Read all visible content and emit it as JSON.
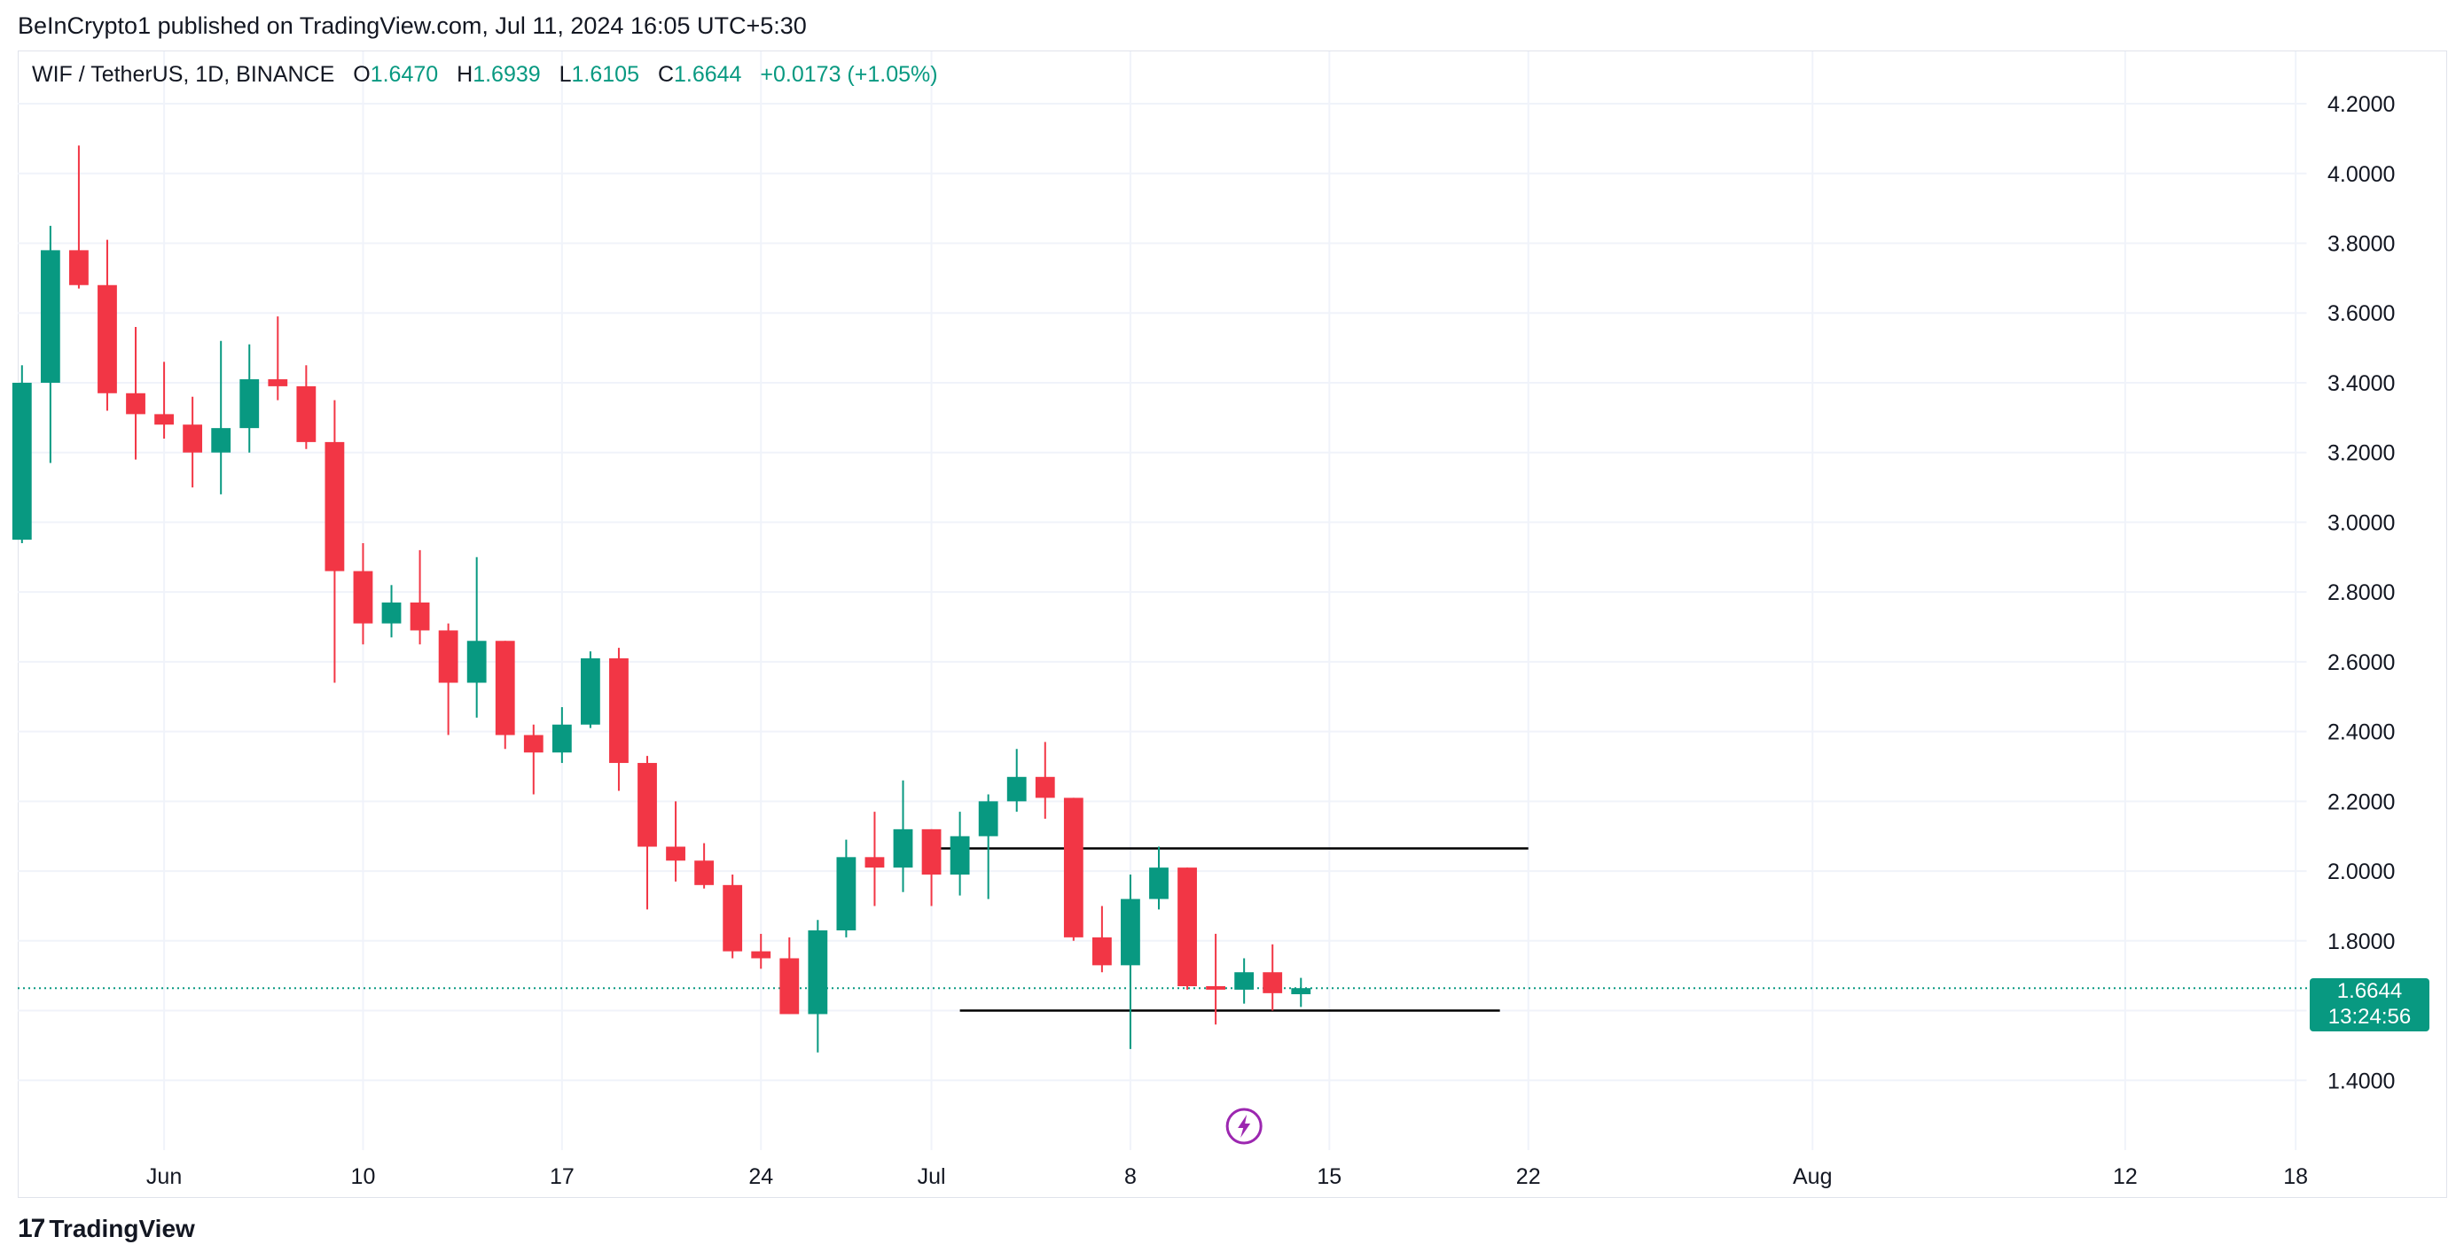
{
  "publisher": "BeInCrypto1 published on TradingView.com, Jul 11, 2024 16:05 UTC+5:30",
  "legend": {
    "symbol": "WIF / TetherUS, 1D, BINANCE",
    "o_label": "O",
    "o_value": "1.6470",
    "h_label": "H",
    "h_value": "1.6939",
    "l_label": "L",
    "l_value": "1.6105",
    "c_label": "C",
    "c_value": "1.6644",
    "change": "+0.0173 (+1.05%)"
  },
  "badge": {
    "price": "1.6644",
    "countdown": "13:24:56"
  },
  "footer": {
    "brand": "TradingView",
    "logo_icon": "tradingview-logo-icon"
  },
  "colors": {
    "up": "#089981",
    "down": "#F23645",
    "grid": "#F0F3FA",
    "event": "#9C27B0"
  },
  "chart_data": {
    "type": "candlestick",
    "y_ticks": [
      "4.2000",
      "4.0000",
      "3.8000",
      "3.6000",
      "3.4000",
      "3.2000",
      "3.0000",
      "2.8000",
      "2.6000",
      "2.4000",
      "2.2000",
      "2.0000",
      "1.8000",
      "1.6000",
      "1.4000"
    ],
    "y_tick_values": [
      4.2,
      4.0,
      3.8,
      3.6,
      3.4,
      3.2,
      3.0,
      2.8,
      2.6,
      2.4,
      2.2,
      2.0,
      1.8,
      1.6,
      1.4
    ],
    "ylim": [
      1.2,
      4.35
    ],
    "x_ticks": [
      {
        "label": "Jun",
        "day": 3
      },
      {
        "label": "10",
        "day": 10
      },
      {
        "label": "17",
        "day": 17
      },
      {
        "label": "24",
        "day": 24
      },
      {
        "label": "Jul",
        "day": 30
      },
      {
        "label": "8",
        "day": 37
      },
      {
        "label": "15",
        "day": 44
      },
      {
        "label": "22",
        "day": 51
      },
      {
        "label": "Aug",
        "day": 61
      },
      {
        "label": "12",
        "day": 72
      },
      {
        "label": "18",
        "day": 78
      }
    ],
    "xlim": [
      -2.15,
      78.4
    ],
    "candles": [
      {
        "date": "May 29",
        "o": 2.95,
        "h": 3.45,
        "l": 2.94,
        "c": 3.4
      },
      {
        "date": "May 30",
        "o": 3.4,
        "h": 3.85,
        "l": 3.17,
        "c": 3.78
      },
      {
        "date": "May 31",
        "o": 3.78,
        "h": 4.08,
        "l": 3.67,
        "c": 3.68
      },
      {
        "date": "Jun 1",
        "o": 3.68,
        "h": 3.81,
        "l": 3.32,
        "c": 3.37
      },
      {
        "date": "Jun 2",
        "o": 3.37,
        "h": 3.56,
        "l": 3.18,
        "c": 3.31
      },
      {
        "date": "Jun 3",
        "o": 3.31,
        "h": 3.46,
        "l": 3.24,
        "c": 3.28
      },
      {
        "date": "Jun 4",
        "o": 3.28,
        "h": 3.36,
        "l": 3.1,
        "c": 3.2
      },
      {
        "date": "Jun 5",
        "o": 3.2,
        "h": 3.52,
        "l": 3.08,
        "c": 3.27
      },
      {
        "date": "Jun 6",
        "o": 3.27,
        "h": 3.51,
        "l": 3.2,
        "c": 3.41
      },
      {
        "date": "Jun 7",
        "o": 3.41,
        "h": 3.59,
        "l": 3.35,
        "c": 3.39
      },
      {
        "date": "Jun 8",
        "o": 3.39,
        "h": 3.45,
        "l": 3.21,
        "c": 3.23
      },
      {
        "date": "Jun 9",
        "o": 3.23,
        "h": 3.35,
        "l": 2.54,
        "c": 2.86
      },
      {
        "date": "Jun 10",
        "o": 2.86,
        "h": 2.94,
        "l": 2.65,
        "c": 2.71
      },
      {
        "date": "Jun 11",
        "o": 2.71,
        "h": 2.82,
        "l": 2.67,
        "c": 2.77
      },
      {
        "date": "Jun 12",
        "o": 2.77,
        "h": 2.92,
        "l": 2.65,
        "c": 2.69
      },
      {
        "date": "Jun 13",
        "o": 2.69,
        "h": 2.71,
        "l": 2.39,
        "c": 2.54
      },
      {
        "date": "Jun 14",
        "o": 2.54,
        "h": 2.9,
        "l": 2.44,
        "c": 2.66
      },
      {
        "date": "Jun 15",
        "o": 2.66,
        "h": 2.66,
        "l": 2.35,
        "c": 2.39
      },
      {
        "date": "Jun 16",
        "o": 2.39,
        "h": 2.42,
        "l": 2.22,
        "c": 2.34
      },
      {
        "date": "Jun 17",
        "o": 2.34,
        "h": 2.47,
        "l": 2.31,
        "c": 2.42
      },
      {
        "date": "Jun 18",
        "o": 2.42,
        "h": 2.63,
        "l": 2.41,
        "c": 2.61
      },
      {
        "date": "Jun 19",
        "o": 2.61,
        "h": 2.64,
        "l": 2.23,
        "c": 2.31
      },
      {
        "date": "Jun 20",
        "o": 2.31,
        "h": 2.33,
        "l": 1.89,
        "c": 2.07
      },
      {
        "date": "Jun 21",
        "o": 2.07,
        "h": 2.2,
        "l": 1.97,
        "c": 2.03
      },
      {
        "date": "Jun 22",
        "o": 2.03,
        "h": 2.08,
        "l": 1.95,
        "c": 1.96
      },
      {
        "date": "Jun 23",
        "o": 1.96,
        "h": 1.99,
        "l": 1.75,
        "c": 1.77
      },
      {
        "date": "Jun 24",
        "o": 1.77,
        "h": 1.82,
        "l": 1.72,
        "c": 1.75
      },
      {
        "date": "Jun 25",
        "o": 1.75,
        "h": 1.81,
        "l": 1.59,
        "c": 1.59
      },
      {
        "date": "Jun 26",
        "o": 1.59,
        "h": 1.86,
        "l": 1.48,
        "c": 1.83
      },
      {
        "date": "Jun 27",
        "o": 1.83,
        "h": 2.09,
        "l": 1.81,
        "c": 2.04
      },
      {
        "date": "Jun 28",
        "o": 2.04,
        "h": 2.17,
        "l": 1.9,
        "c": 2.01
      },
      {
        "date": "Jun 29",
        "o": 2.01,
        "h": 2.26,
        "l": 1.94,
        "c": 2.12
      },
      {
        "date": "Jun 30",
        "o": 2.12,
        "h": 2.12,
        "l": 1.9,
        "c": 1.99
      },
      {
        "date": "Jul 1",
        "o": 1.99,
        "h": 2.17,
        "l": 1.93,
        "c": 2.1
      },
      {
        "date": "Jul 2",
        "o": 2.1,
        "h": 2.22,
        "l": 1.92,
        "c": 2.2
      },
      {
        "date": "Jul 3",
        "o": 2.2,
        "h": 2.35,
        "l": 2.17,
        "c": 2.27
      },
      {
        "date": "Jul 4",
        "o": 2.27,
        "h": 2.37,
        "l": 2.15,
        "c": 2.21
      },
      {
        "date": "Jul 5",
        "o": 2.21,
        "h": 2.21,
        "l": 1.8,
        "c": 1.81
      },
      {
        "date": "Jul 6",
        "o": 1.81,
        "h": 1.9,
        "l": 1.71,
        "c": 1.73
      },
      {
        "date": "Jul 7",
        "o": 1.73,
        "h": 1.99,
        "l": 1.49,
        "c": 1.92
      },
      {
        "date": "Jul 8",
        "o": 1.92,
        "h": 2.07,
        "l": 1.89,
        "c": 2.01
      },
      {
        "date": "Jul 9",
        "o": 2.01,
        "h": 2.01,
        "l": 1.66,
        "c": 1.67
      },
      {
        "date": "Jul 10",
        "o": 1.67,
        "h": 1.82,
        "l": 1.56,
        "c": 1.66
      },
      {
        "date": "Jul 11",
        "o": 1.66,
        "h": 1.75,
        "l": 1.62,
        "c": 1.71
      },
      {
        "date": "Jul 12",
        "o": 1.71,
        "h": 1.79,
        "l": 1.6,
        "c": 1.65
      },
      {
        "date": "Jul 13",
        "o": 1.647,
        "h": 1.6939,
        "l": 1.6105,
        "c": 1.6644
      }
    ],
    "last_price": 1.6644,
    "horizontal_lines": [
      {
        "name": "resistance",
        "price": 2.065,
        "from_day": 30,
        "to_day": 51
      },
      {
        "name": "support",
        "price": 1.6,
        "from_day": 31,
        "to_day": 50
      }
    ],
    "event_marker": {
      "icon": "lightning-event-icon",
      "day": 41
    }
  }
}
